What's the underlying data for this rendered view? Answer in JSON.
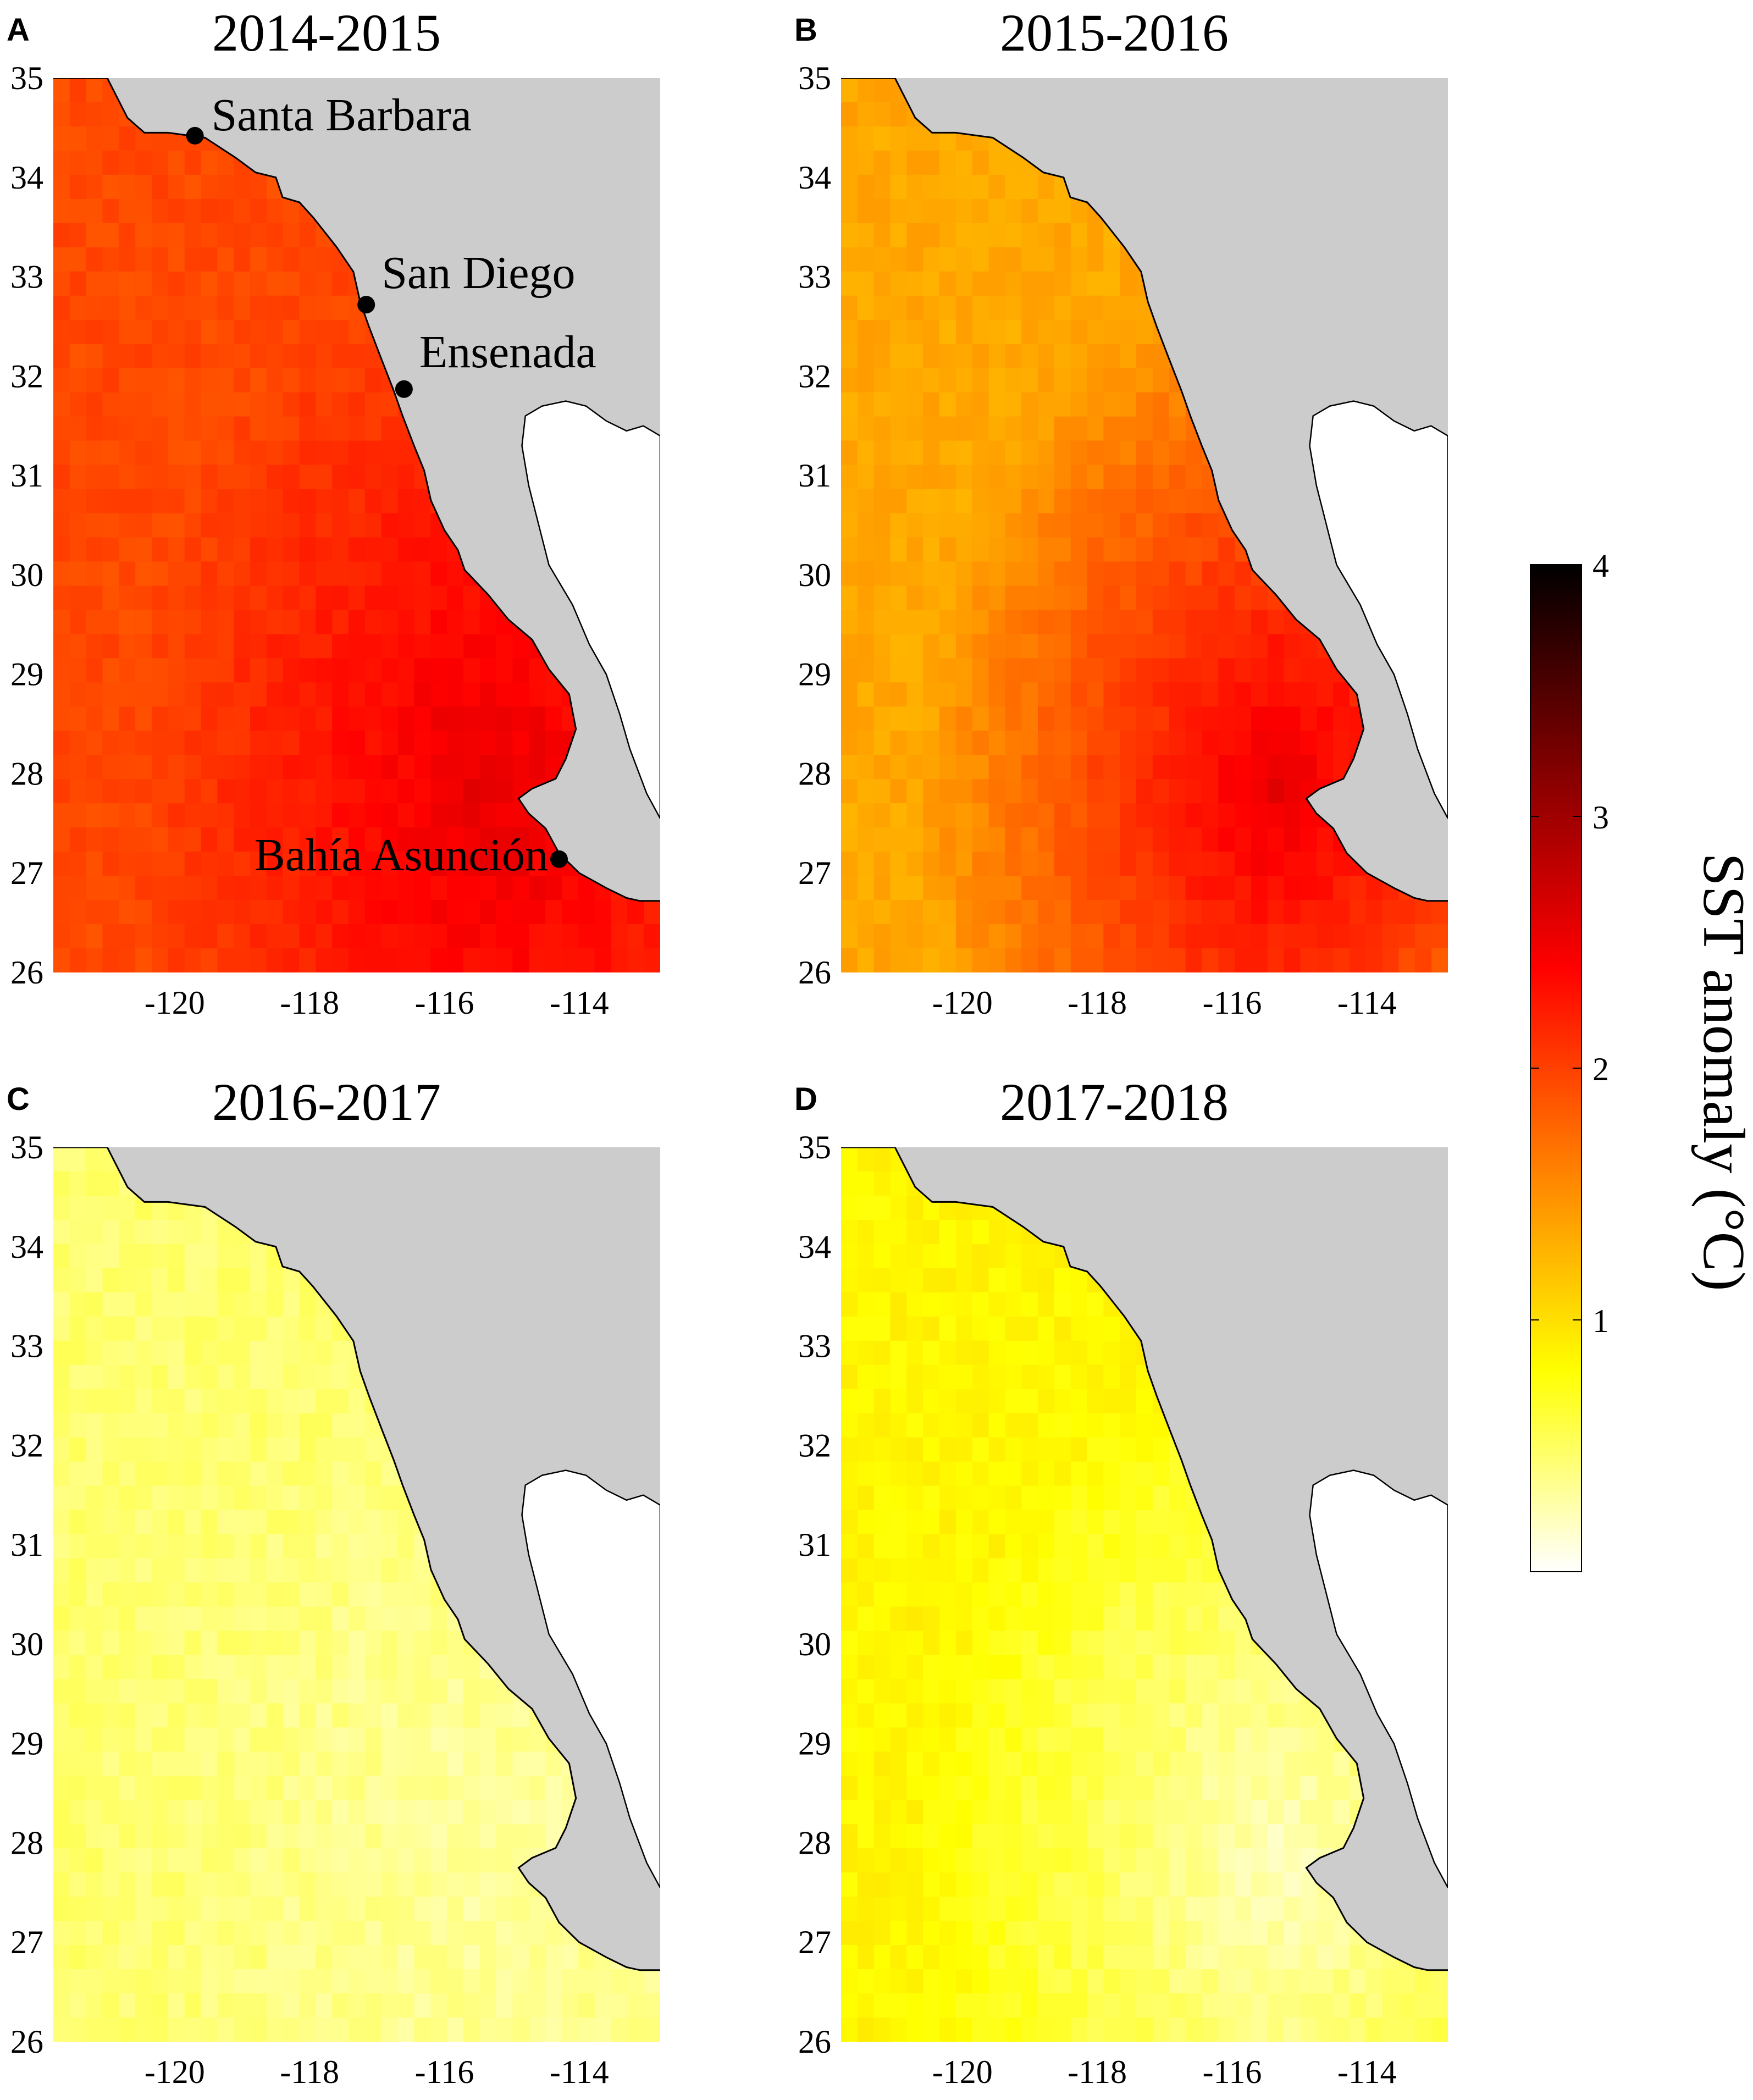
{
  "colors": {
    "land": "#cccccc",
    "inland": "#ffffff",
    "coast_stroke": "#000000",
    "colormap": [
      "#ffffff",
      "#ffff00",
      "#ff8000",
      "#ff0000",
      "#800000",
      "#000000"
    ]
  },
  "panels": [
    {
      "letter": "A",
      "title": "2014-2015",
      "base": 1.95,
      "peak": 2.55
    },
    {
      "letter": "B",
      "title": "2015-2016",
      "base": 1.35,
      "peak": 2.55
    },
    {
      "letter": "C",
      "title": "2016-2017",
      "base": 0.45,
      "peak": 0.3
    },
    {
      "letter": "D",
      "title": "2017-2018",
      "base": 0.85,
      "peak": 0.2
    }
  ],
  "axes": {
    "lon_ticks": [
      "-120",
      "-118",
      "-116",
      "-114"
    ],
    "lat_ticks": [
      "26",
      "27",
      "28",
      "29",
      "30",
      "31",
      "32",
      "33",
      "34",
      "35"
    ],
    "lon_range": [
      -121.8,
      -112.8
    ],
    "lat_range": [
      26,
      35
    ]
  },
  "places": [
    {
      "name": "Santa Barbara",
      "lon": -119.7,
      "lat": 34.42
    },
    {
      "name": "San Diego",
      "lon": -117.16,
      "lat": 32.72
    },
    {
      "name": "Ensenada",
      "lon": -116.6,
      "lat": 31.87
    },
    {
      "name": "Bahía Asunción",
      "lon": -114.3,
      "lat": 27.14
    }
  ],
  "colorbar": {
    "title": "SST anomaly (°C)",
    "range": [
      0,
      4
    ],
    "ticks": [
      "1",
      "2",
      "3",
      "4"
    ]
  }
}
